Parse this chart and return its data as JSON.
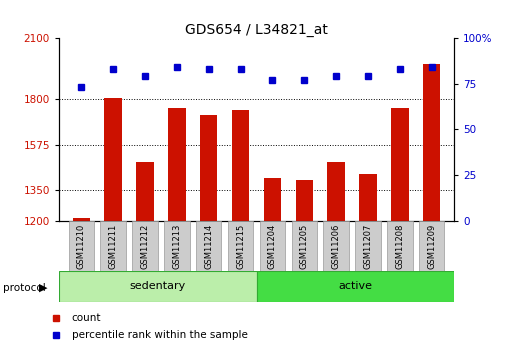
{
  "title": "GDS654 / L34821_at",
  "samples": [
    "GSM11210",
    "GSM11211",
    "GSM11212",
    "GSM11213",
    "GSM11214",
    "GSM11215",
    "GSM11204",
    "GSM11205",
    "GSM11206",
    "GSM11207",
    "GSM11208",
    "GSM11209"
  ],
  "counts": [
    1215,
    1805,
    1490,
    1755,
    1720,
    1745,
    1410,
    1400,
    1490,
    1430,
    1755,
    1970
  ],
  "percentiles": [
    73,
    83,
    79,
    84,
    83,
    83,
    77,
    77,
    79,
    79,
    83,
    84
  ],
  "sedentary_color": "#BBEEAA",
  "active_color": "#44DD44",
  "bar_color": "#CC1100",
  "dot_color": "#0000CC",
  "ylim_left": [
    1200,
    2100
  ],
  "ylim_right": [
    0,
    100
  ],
  "yticks_left": [
    1200,
    1350,
    1575,
    1800,
    2100
  ],
  "yticks_right": [
    0,
    25,
    50,
    75,
    100
  ],
  "grid_dotted_at": [
    1350,
    1575,
    1800
  ],
  "left_tick_color": "#CC1100",
  "right_tick_color": "#0000CC"
}
